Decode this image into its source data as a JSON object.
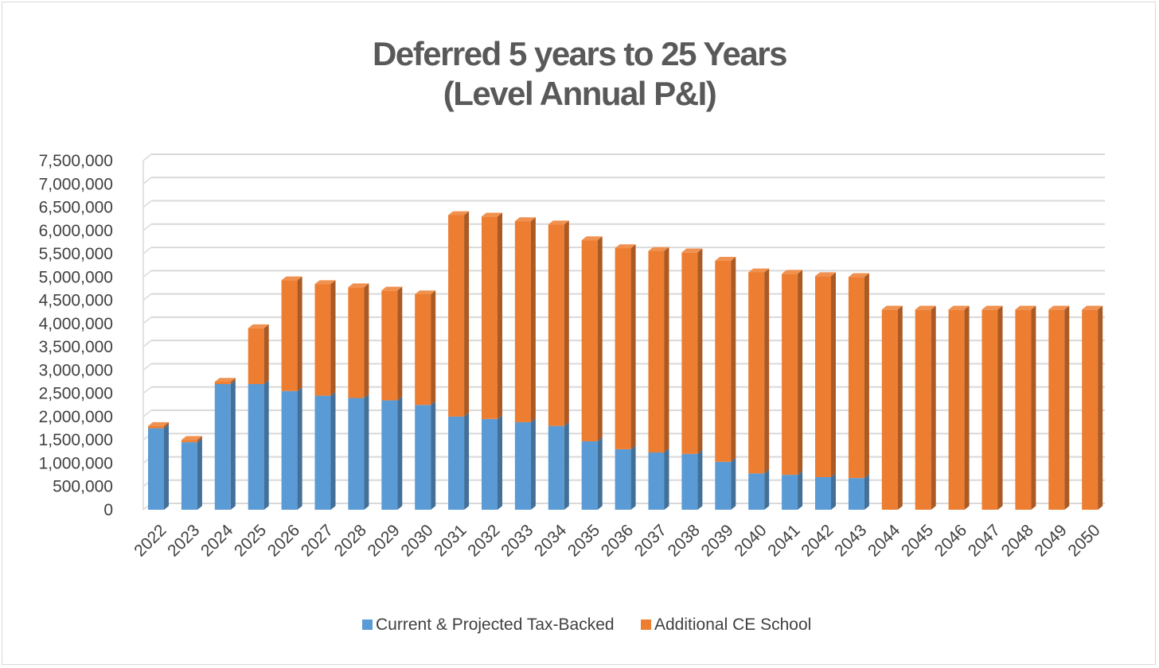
{
  "chart_data": {
    "type": "bar",
    "stacked": true,
    "title_lines": [
      "Deferred 5 years to 25 Years",
      "(Level Annual P&I)"
    ],
    "xlabel": "",
    "ylabel": "",
    "ylim": [
      0,
      7500000
    ],
    "ytick_step": 500000,
    "y_tick_labels": [
      "0",
      "500,000",
      "1,000,000",
      "1,500,000",
      "2,000,000",
      "2,500,000",
      "3,000,000",
      "3,500,000",
      "4,000,000",
      "4,500,000",
      "5,000,000",
      "5,500,000",
      "6,000,000",
      "6,500,000",
      "7,000,000",
      "7,500,000"
    ],
    "grid": true,
    "legend_position": "bottom",
    "categories": [
      "2022",
      "2023",
      "2024",
      "2025",
      "2026",
      "2027",
      "2028",
      "2029",
      "2030",
      "2031",
      "2032",
      "2033",
      "2034",
      "2035",
      "2036",
      "2037",
      "2038",
      "2039",
      "2040",
      "2041",
      "2042",
      "2043",
      "2044",
      "2045",
      "2046",
      "2047",
      "2048",
      "2049",
      "2050"
    ],
    "series": [
      {
        "name": "Current & Projected Tax-Backed",
        "color": "#5b9bd5",
        "values": [
          1750000,
          1450000,
          2700000,
          2700000,
          2550000,
          2450000,
          2400000,
          2350000,
          2250000,
          2000000,
          1950000,
          1880000,
          1800000,
          1470000,
          1300000,
          1230000,
          1200000,
          1030000,
          780000,
          750000,
          700000,
          680000,
          0,
          0,
          0,
          0,
          0,
          0,
          0
        ]
      },
      {
        "name": "Additional CE School",
        "color": "#ed7d31",
        "values": [
          50000,
          50000,
          50000,
          1200000,
          2380000,
          2400000,
          2380000,
          2360000,
          2380000,
          4330000,
          4350000,
          4320000,
          4330000,
          4320000,
          4320000,
          4330000,
          4330000,
          4320000,
          4320000,
          4320000,
          4320000,
          4320000,
          4300000,
          4300000,
          4300000,
          4300000,
          4300000,
          4300000,
          4300000
        ]
      }
    ]
  }
}
